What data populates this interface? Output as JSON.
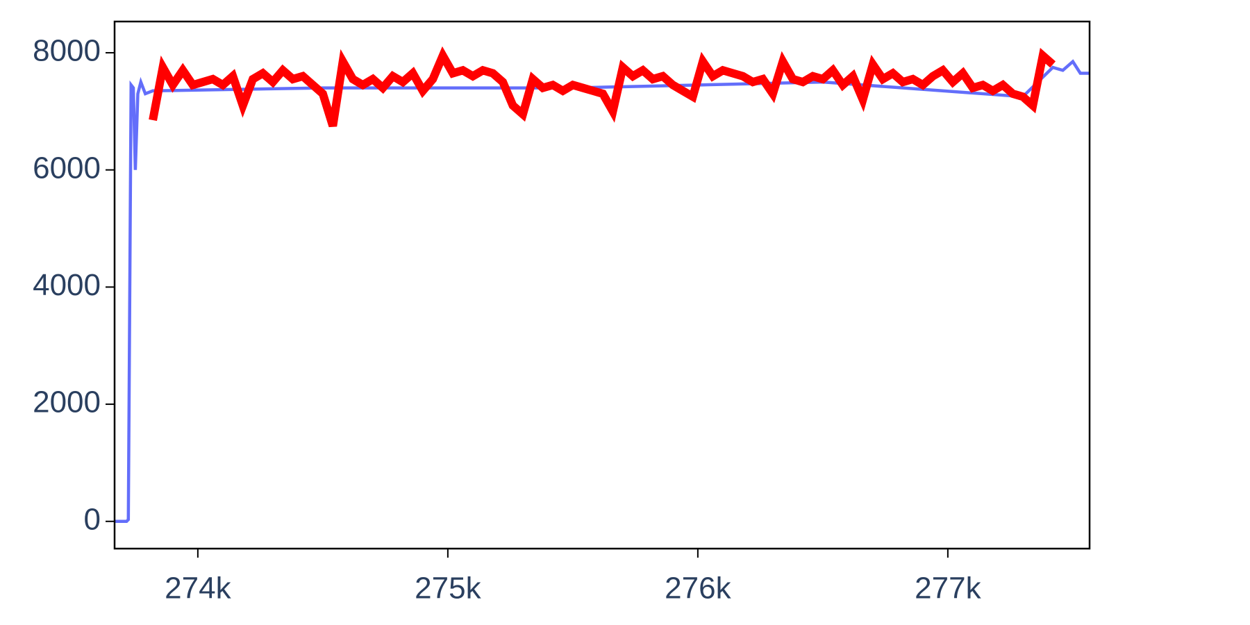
{
  "chart_data": {
    "type": "line",
    "xlim": [
      273667,
      277567
    ],
    "xticks": [
      {
        "value": 274000,
        "label": "274k"
      },
      {
        "value": 275000,
        "label": "275k"
      },
      {
        "value": 276000,
        "label": "276k"
      },
      {
        "value": 277000,
        "label": "277k"
      }
    ],
    "ylim": [
      -465,
      8533
    ],
    "yticks": [
      0,
      2000,
      4000,
      6000,
      8000
    ],
    "series": [
      {
        "color": "#636efa",
        "x": [
          273667,
          273715,
          273722,
          273733,
          273742,
          273750,
          273760,
          273772,
          273790,
          273820,
          274500,
          275500,
          276500,
          277300,
          277420,
          277460,
          277500,
          277530,
          277567
        ],
        "values": [
          0,
          0,
          30,
          7450,
          7400,
          6000,
          7300,
          7500,
          7300,
          7350,
          7400,
          7400,
          7500,
          7250,
          7750,
          7700,
          7850,
          7650,
          7650
        ]
      },
      {
        "color": "#ff0000",
        "x": [
          273820,
          273860,
          273900,
          273940,
          273980,
          274020,
          274060,
          274100,
          274140,
          274180,
          274220,
          274260,
          274300,
          274340,
          274380,
          274420,
          274460,
          274500,
          274540,
          274580,
          274620,
          274660,
          274700,
          274740,
          274780,
          274820,
          274860,
          274900,
          274940,
          274980,
          275020,
          275060,
          275100,
          275140,
          275180,
          275220,
          275260,
          275300,
          275340,
          275380,
          275420,
          275460,
          275500,
          275540,
          275580,
          275620,
          275660,
          275700,
          275740,
          275780,
          275820,
          275860,
          275900,
          275940,
          275980,
          276020,
          276060,
          276100,
          276140,
          276180,
          276220,
          276260,
          276300,
          276340,
          276380,
          276420,
          276460,
          276500,
          276540,
          276580,
          276620,
          276660,
          276700,
          276740,
          276780,
          276820,
          276860,
          276900,
          276940,
          276980,
          277020,
          277060,
          277100,
          277140,
          277180,
          277220,
          277260,
          277300,
          277340,
          277380,
          277420
        ],
        "values": [
          6850,
          7750,
          7450,
          7700,
          7450,
          7500,
          7550,
          7450,
          7600,
          7100,
          7550,
          7650,
          7500,
          7700,
          7550,
          7600,
          7450,
          7300,
          6750,
          7850,
          7550,
          7450,
          7550,
          7400,
          7600,
          7500,
          7650,
          7350,
          7550,
          7950,
          7650,
          7700,
          7600,
          7700,
          7650,
          7500,
          7100,
          6950,
          7550,
          7400,
          7450,
          7350,
          7450,
          7400,
          7350,
          7300,
          7000,
          7750,
          7600,
          7700,
          7550,
          7600,
          7450,
          7350,
          7250,
          7850,
          7600,
          7700,
          7650,
          7600,
          7500,
          7550,
          7300,
          7850,
          7550,
          7500,
          7600,
          7550,
          7700,
          7450,
          7600,
          7200,
          7800,
          7550,
          7650,
          7500,
          7550,
          7450,
          7600,
          7700,
          7500,
          7650,
          7400,
          7450,
          7350,
          7450,
          7300,
          7250,
          7100,
          7950,
          7800
        ]
      }
    ]
  }
}
